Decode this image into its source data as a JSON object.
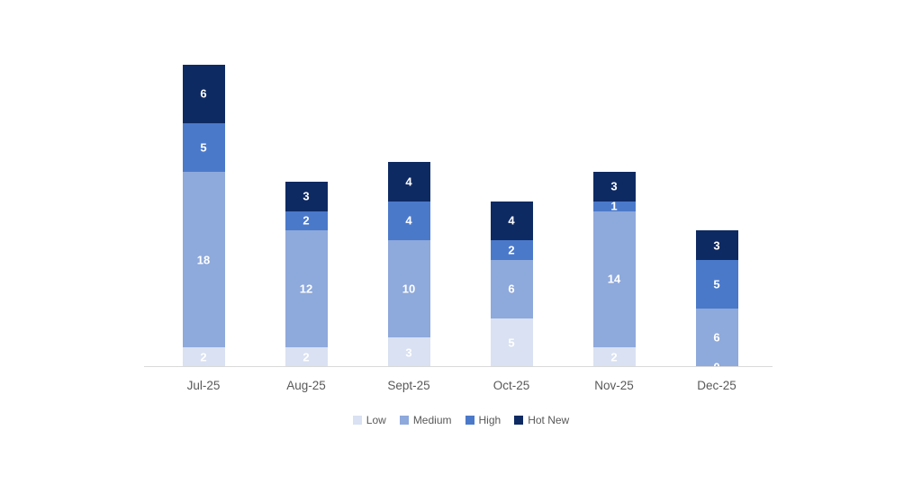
{
  "chart_data": {
    "type": "bar",
    "variant": "stacked-vertical",
    "title": "",
    "xlabel": "",
    "ylabel": "",
    "categories": [
      "Jul-25",
      "Aug-25",
      "Sept-25",
      "Oct-25",
      "Nov-25",
      "Dec-25"
    ],
    "series": [
      {
        "name": "Low",
        "color": "#D9E1F2",
        "values": [
          2,
          2,
          3,
          5,
          2,
          0
        ]
      },
      {
        "name": "Medium",
        "color": "#8EA9DB",
        "values": [
          18,
          12,
          10,
          6,
          14,
          6
        ]
      },
      {
        "name": "High",
        "color": "#4B79CA",
        "values": [
          5,
          2,
          4,
          2,
          1,
          5
        ]
      },
      {
        "name": "Hot New",
        "color": "#0E2A63",
        "values": [
          6,
          3,
          4,
          4,
          3,
          3
        ]
      }
    ],
    "totals": [
      31,
      19,
      21,
      17,
      20,
      14
    ],
    "data_labels": true,
    "data_label_color": "#FFFFFF",
    "ylim": [
      0,
      31
    ],
    "grid": false,
    "axis_line_color": "#D9D9D9",
    "tick_label_color": "#595959",
    "legend_position": "bottom",
    "legend": [
      "Low",
      "Medium",
      "High",
      "Hot New"
    ]
  }
}
